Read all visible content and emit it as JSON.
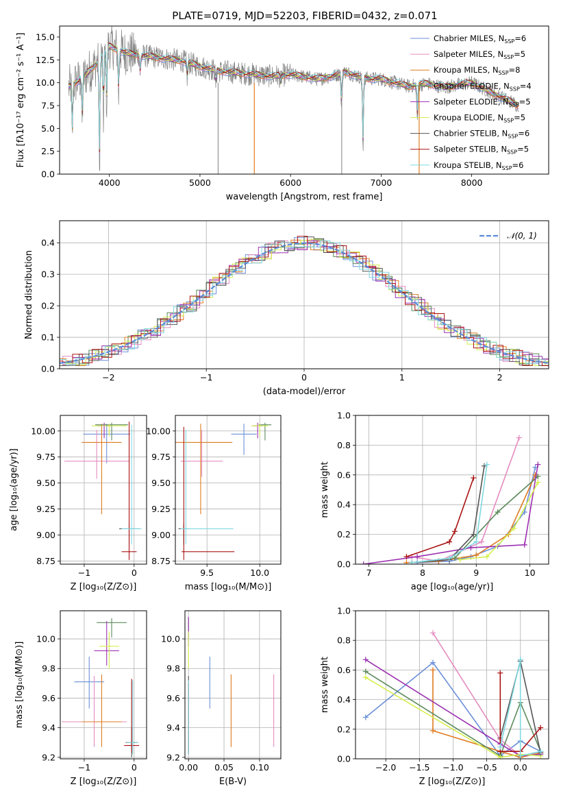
{
  "figure": {
    "title": "PLATE=0719, MJD=52203, FIBERID=0432, z=0.071"
  },
  "series_colors": {
    "Chabrier MILES": "#6a8fd8",
    "Salpeter MILES": "#e58bbf",
    "Kroupa MILES": "#e07b1f",
    "Chabrier ELODIE": "#5b8a5b",
    "Salpeter ELODIE": "#9b30b0",
    "Kroupa ELODIE": "#d4ee4c",
    "Chabrier STELIB": "#555555",
    "Salpeter STELIB": "#aa1111",
    "Kroupa STELIB": "#7fd8e0"
  },
  "chart_data": [
    {
      "id": "spectrum",
      "type": "line",
      "xlabel": "wavelength [Angstrom, rest frame]",
      "ylabel": "Flux [fλ10⁻¹⁷ erg cm⁻² s⁻¹ A⁻¹]",
      "xlim": [
        3450,
        8850
      ],
      "ylim": [
        0,
        16.2
      ],
      "xticks": [
        4000,
        5000,
        6000,
        7000,
        8000
      ],
      "yticks": [
        0.0,
        2.5,
        5.0,
        7.5,
        10.0,
        12.5,
        15.0
      ],
      "legend_position": "top-right",
      "legend": [
        {
          "label": "Chabrier MILES, N",
          "sub": "SSP",
          "tail": "=6",
          "series": "Chabrier MILES"
        },
        {
          "label": "Salpeter MILES, N",
          "sub": "SSP",
          "tail": "=5",
          "series": "Salpeter MILES"
        },
        {
          "label": "Kroupa MILES, N",
          "sub": "SSP",
          "tail": "=8",
          "series": "Kroupa MILES"
        },
        {
          "label": "Chabrier ELODIE, N",
          "sub": "SSP",
          "tail": "=4",
          "series": "Chabrier ELODIE"
        },
        {
          "label": "Salpeter ELODIE, N",
          "sub": "SSP",
          "tail": "=5",
          "series": "Salpeter ELODIE"
        },
        {
          "label": "Kroupa ELODIE, N",
          "sub": "SSP",
          "tail": "=5",
          "series": "Kroupa ELODIE"
        },
        {
          "label": "Chabrier STELIB, N",
          "sub": "SSP",
          "tail": "=6",
          "series": "Chabrier STELIB"
        },
        {
          "label": "Salpeter STELIB, N",
          "sub": "SSP",
          "tail": "=5",
          "series": "Salpeter STELIB"
        },
        {
          "label": "Kroupa STELIB, N",
          "sub": "SSP",
          "tail": "=6",
          "series": "Kroupa STELIB"
        }
      ],
      "continuum": [
        [
          3550,
          9.5
        ],
        [
          3700,
          10.5
        ],
        [
          3850,
          12.0
        ],
        [
          4000,
          14.0
        ],
        [
          4200,
          13.2
        ],
        [
          4500,
          12.8
        ],
        [
          4800,
          12.4
        ],
        [
          5000,
          11.8
        ],
        [
          5200,
          11.3
        ],
        [
          5500,
          11.0
        ],
        [
          5800,
          10.7
        ],
        [
          6000,
          10.9
        ],
        [
          6300,
          10.4
        ],
        [
          6500,
          10.8
        ],
        [
          6600,
          11.2
        ],
        [
          6800,
          10.5
        ],
        [
          7000,
          10.4
        ],
        [
          7300,
          9.6
        ],
        [
          7500,
          9.9
        ],
        [
          7700,
          9.5
        ],
        [
          8000,
          10.0
        ],
        [
          8200,
          9.0
        ],
        [
          8500,
          7.6
        ]
      ],
      "absorption": [
        [
          3590,
          4.0
        ],
        [
          3700,
          5.5
        ],
        [
          3890,
          0.0
        ],
        [
          3935,
          6.0
        ],
        [
          3970,
          7.5
        ],
        [
          4102,
          8.5
        ],
        [
          4340,
          11.0
        ],
        [
          4860,
          10.5
        ],
        [
          5175,
          9.8
        ],
        [
          5890,
          10.0
        ],
        [
          6563,
          7.0
        ],
        [
          6800,
          2.2
        ],
        [
          7400,
          5.8
        ],
        [
          8500,
          7.5
        ],
        [
          8540,
          6.5
        ]
      ],
      "gray_spikes": [
        5200,
        6565
      ],
      "orange_spikes": [
        5600,
        7420
      ]
    },
    {
      "id": "residuals",
      "type": "line",
      "xlabel": "(data-model)/error",
      "ylabel": "Normed distribution",
      "xlim": [
        -2.5,
        2.5
      ],
      "ylim": [
        0,
        0.47
      ],
      "xticks": [
        -2,
        -1,
        0,
        1,
        2
      ],
      "yticks": [
        0.0,
        0.1,
        0.2,
        0.3,
        0.4
      ],
      "legend_position": "top-right",
      "legend_label": "𝒩(0, 1)",
      "gaussian": {
        "mu": 0,
        "sigma": 1,
        "color": "#5b8ad6"
      }
    },
    {
      "id": "age-vs-z",
      "type": "scatter",
      "xlabel": "Z [log₁₀(Z/Z⊙)]",
      "ylabel": "age  [log₁₀(age/yr)]",
      "xlim": [
        -1.48,
        0.25
      ],
      "ylim": [
        8.72,
        10.15
      ],
      "xticks": [
        -1,
        0
      ],
      "yticks": [
        8.75,
        9.0,
        9.25,
        9.5,
        9.75,
        10.0
      ],
      "points": [
        {
          "series": "Chabrier MILES",
          "x": -0.55,
          "y": 9.97,
          "xerr": 0.47,
          "yerr": [
            0.28,
            0.1
          ]
        },
        {
          "series": "Salpeter MILES",
          "x": -0.75,
          "y": 9.71,
          "xerr": 0.65,
          "yerr": [
            0.17,
            0.3
          ]
        },
        {
          "series": "Kroupa MILES",
          "x": -0.65,
          "y": 9.89,
          "xerr": 0.4,
          "yerr": [
            0.69,
            0.18
          ]
        },
        {
          "series": "Chabrier ELODIE",
          "x": -0.45,
          "y": 10.06,
          "xerr": 0.33,
          "yerr": [
            0.15,
            0.02
          ]
        },
        {
          "series": "Salpeter ELODIE",
          "x": -0.6,
          "y": 10.05,
          "xerr": 0.15,
          "yerr": [
            0.12,
            0.03
          ]
        },
        {
          "series": "Kroupa ELODIE",
          "x": -0.5,
          "y": 10.05,
          "xerr": 0.35,
          "yerr": [
            0.1,
            0.02
          ]
        },
        {
          "series": "Chabrier STELIB",
          "x": -0.1,
          "y": 9.06,
          "xerr": 0.2,
          "yerr": [
            0.15,
            0.05
          ]
        },
        {
          "series": "Salpeter STELIB",
          "x": -0.1,
          "y": 8.84,
          "xerr": 0.15,
          "yerr": [
            0.08,
            1.25
          ]
        },
        {
          "series": "Kroupa STELIB",
          "x": -0.05,
          "y": 9.06,
          "xerr": 0.2,
          "yerr": [
            0.15,
            1.0
          ]
        }
      ]
    },
    {
      "id": "age-vs-mass",
      "type": "scatter",
      "xlabel": "mass [log₁₀(M/M⊙)]",
      "ylabel": "",
      "xlim": [
        9.2,
        10.2
      ],
      "ylim": [
        8.72,
        10.15
      ],
      "xticks": [
        9.5,
        10.0
      ],
      "yticks": [
        8.75,
        9.0,
        9.25,
        9.5,
        9.75,
        10.0
      ],
      "points": [
        {
          "series": "Chabrier MILES",
          "x": 9.85,
          "y": 9.97,
          "xerr": 0.12,
          "yerr": [
            0.2,
            0.1
          ]
        },
        {
          "series": "Salpeter MILES",
          "x": 9.45,
          "y": 9.71,
          "xerr": 0.2,
          "yerr": [
            0.15,
            0.3
          ]
        },
        {
          "series": "Kroupa MILES",
          "x": 9.44,
          "y": 9.89,
          "xerr": 0.3,
          "yerr": [
            0.69,
            0.18
          ]
        },
        {
          "series": "Chabrier ELODIE",
          "x": 10.05,
          "y": 10.06,
          "xerr": 0.06,
          "yerr": [
            0.15,
            0.02
          ]
        },
        {
          "series": "Salpeter ELODIE",
          "x": 9.98,
          "y": 10.05,
          "xerr": 0.05,
          "yerr": [
            0.12,
            0.03
          ]
        },
        {
          "series": "Kroupa ELODIE",
          "x": 10.0,
          "y": 10.05,
          "xerr": 0.08,
          "yerr": [
            0.1,
            0.02
          ]
        },
        {
          "series": "Chabrier STELIB",
          "x": 9.28,
          "y": 9.06,
          "xerr": 0.05,
          "yerr": [
            0.15,
            0.05
          ]
        },
        {
          "series": "Salpeter STELIB",
          "x": 9.28,
          "y": 8.84,
          "xerr": [
            0.02,
            0.48
          ],
          "yerr": [
            0.08,
            1.2
          ]
        },
        {
          "series": "Kroupa STELIB",
          "x": 9.3,
          "y": 9.06,
          "xerr": [
            0.05,
            0.45
          ],
          "yerr": [
            0.15,
            0.95
          ]
        }
      ]
    },
    {
      "id": "weight-vs-age",
      "type": "line",
      "xlabel": "age  [log₁₀(age/yr)]",
      "ylabel": "mass weight",
      "xlim": [
        6.75,
        10.35
      ],
      "ylim": [
        0,
        1.0
      ],
      "xticks": [
        7,
        8,
        9,
        10
      ],
      "yticks": [
        0.0,
        0.2,
        0.4,
        0.6,
        0.8,
        1.0
      ],
      "series": [
        {
          "name": "Chabrier MILES",
          "x": [
            7.9,
            8.5,
            8.9,
            9.4,
            9.9,
            10.1
          ],
          "y": [
            0.01,
            0.02,
            0.05,
            0.12,
            0.35,
            0.65
          ]
        },
        {
          "name": "Salpeter MILES",
          "x": [
            7.8,
            8.3,
            9.1,
            9.8
          ],
          "y": [
            0.05,
            0.02,
            0.15,
            0.85
          ]
        },
        {
          "name": "Kroupa MILES",
          "x": [
            7.7,
            8.3,
            9.0,
            9.6,
            10.1
          ],
          "y": [
            0.01,
            0.02,
            0.06,
            0.2,
            0.6
          ]
        },
        {
          "name": "Chabrier ELODIE",
          "x": [
            8.6,
            9.4,
            10.15
          ],
          "y": [
            0.04,
            0.35,
            0.59
          ]
        },
        {
          "name": "Salpeter ELODIE",
          "x": [
            6.9,
            7.9,
            8.9,
            9.9,
            10.15
          ],
          "y": [
            0.0,
            0.05,
            0.11,
            0.13,
            0.67
          ]
        },
        {
          "name": "Kroupa ELODIE",
          "x": [
            8.7,
            9.2,
            9.7,
            10.15
          ],
          "y": [
            0.03,
            0.05,
            0.24,
            0.55
          ]
        },
        {
          "name": "Chabrier STELIB",
          "x": [
            7.8,
            8.5,
            8.95,
            9.15
          ],
          "y": [
            0.01,
            0.03,
            0.2,
            0.66
          ]
        },
        {
          "name": "Salpeter STELIB",
          "x": [
            7.7,
            8.5,
            8.6,
            8.95
          ],
          "y": [
            0.05,
            0.15,
            0.22,
            0.58
          ]
        },
        {
          "name": "Kroupa STELIB",
          "x": [
            7.8,
            8.5,
            9.0,
            9.2
          ],
          "y": [
            0.01,
            0.04,
            0.15,
            0.67
          ]
        }
      ]
    },
    {
      "id": "mass-vs-z",
      "type": "scatter",
      "xlabel": "Z [log₁₀(Z/Z⊙)]",
      "ylabel": "mass [log₁₀(M/M⊙)]",
      "xlim": [
        -1.48,
        0.25
      ],
      "ylim": [
        9.19,
        10.19
      ],
      "xticks": [
        -1,
        0
      ],
      "yticks": [
        9.2,
        9.4,
        9.6,
        9.8,
        10.0
      ],
      "points": [
        {
          "series": "Chabrier MILES",
          "x": -0.9,
          "y": 9.71,
          "xerr": 0.3,
          "yerr": [
            0.18,
            0.17
          ]
        },
        {
          "series": "Salpeter MILES",
          "x": -0.8,
          "y": 9.44,
          "xerr": 0.65,
          "yerr": [
            0.17,
            0.31
          ]
        },
        {
          "series": "Kroupa MILES",
          "x": -0.65,
          "y": 9.44,
          "xerr": 0.4,
          "yerr": [
            0.17,
            0.32
          ]
        },
        {
          "series": "Chabrier ELODIE",
          "x": -0.45,
          "y": 10.11,
          "xerr": 0.3,
          "yerr": [
            0.1,
            0.03
          ]
        },
        {
          "series": "Salpeter ELODIE",
          "x": -0.55,
          "y": 9.92,
          "xerr": 0.25,
          "yerr": [
            0.1,
            0.2
          ]
        },
        {
          "series": "Kroupa ELODIE",
          "x": -0.5,
          "y": 9.95,
          "xerr": 0.2,
          "yerr": [
            0.15,
            0.1
          ]
        },
        {
          "series": "Chabrier STELIB",
          "x": -0.05,
          "y": 9.3,
          "xerr": 0.12,
          "yerr": [
            0.1,
            0.1
          ]
        },
        {
          "series": "Salpeter STELIB",
          "x": -0.05,
          "y": 9.28,
          "xerr": 0.15,
          "yerr": [
            0.05,
            0.45
          ]
        },
        {
          "series": "Kroupa STELIB",
          "x": -0.03,
          "y": 9.3,
          "xerr": 0.12,
          "yerr": [
            0.08,
            0.42
          ]
        }
      ]
    },
    {
      "id": "mass-vs-ebv",
      "type": "scatter",
      "xlabel": "E(B-V)",
      "ylabel": "",
      "xlim": [
        -0.005,
        0.13
      ],
      "ylim": [
        9.19,
        10.19
      ],
      "xticks": [
        0.0,
        0.05,
        0.1
      ],
      "yticks": [
        9.2,
        9.4,
        9.6,
        9.8,
        10.0
      ],
      "points": [
        {
          "series": "Chabrier MILES",
          "x": 0.03,
          "y": 9.71,
          "yerr": [
            0.18,
            0.17
          ]
        },
        {
          "series": "Salpeter MILES",
          "x": 0.12,
          "y": 9.44,
          "yerr": [
            0.17,
            0.32
          ]
        },
        {
          "series": "Kroupa MILES",
          "x": 0.06,
          "y": 9.44,
          "yerr": [
            0.17,
            0.32
          ]
        },
        {
          "series": "Chabrier ELODIE",
          "x": 0.0,
          "y": 10.11,
          "yerr": [
            0.1,
            0.03
          ]
        },
        {
          "series": "Salpeter ELODIE",
          "x": 0.0,
          "y": 10.05,
          "yerr": [
            0.1,
            0.1
          ]
        },
        {
          "series": "Kroupa ELODIE",
          "x": 0.0,
          "y": 9.95,
          "yerr": [
            0.15,
            0.1
          ]
        },
        {
          "series": "Chabrier STELIB",
          "x": 0.0,
          "y": 9.3,
          "yerr": [
            0.08,
            0.45
          ]
        },
        {
          "series": "Salpeter STELIB",
          "x": 0.0,
          "y": 9.28,
          "yerr": [
            0.05,
            0.42
          ]
        },
        {
          "series": "Kroupa STELIB",
          "x": 0.0,
          "y": 9.3,
          "yerr": [
            0.08,
            0.42
          ]
        }
      ]
    },
    {
      "id": "weight-vs-z",
      "type": "line",
      "xlabel": "Z [log₁₀(Z/Z⊙)]",
      "ylabel": "mass weight",
      "xlim": [
        -2.45,
        0.42
      ],
      "ylim": [
        0,
        1.0
      ],
      "xticks": [
        -2.0,
        -1.5,
        -1.0,
        -0.5,
        0.0
      ],
      "yticks": [
        0.0,
        0.2,
        0.4,
        0.6,
        0.8,
        1.0
      ],
      "series": [
        {
          "name": "Chabrier MILES",
          "x": [
            -2.3,
            -1.3,
            -0.3,
            0.0,
            0.3
          ],
          "y": [
            0.28,
            0.65,
            0.02,
            0.12,
            0.05
          ]
        },
        {
          "name": "Salpeter MILES",
          "x": [
            -1.3,
            -0.3,
            0.0,
            0.3
          ],
          "y": [
            0.85,
            0.13,
            0.02,
            0.04
          ]
        },
        {
          "name": "Kroupa MILES",
          "x": [
            -1.3,
            -1.3,
            -0.3,
            0.0,
            0.3
          ],
          "y": [
            0.6,
            0.19,
            0.05,
            0.01,
            0.04
          ]
        },
        {
          "name": "Chabrier ELODIE",
          "x": [
            -2.3,
            -0.3,
            0.0,
            0.3
          ],
          "y": [
            0.59,
            0.02,
            0.38,
            0.05
          ]
        },
        {
          "name": "Salpeter ELODIE",
          "x": [
            -2.3,
            -0.3,
            0.0,
            0.3
          ],
          "y": [
            0.67,
            0.1,
            0.02,
            0.03
          ]
        },
        {
          "name": "Kroupa ELODIE",
          "x": [
            -2.3,
            -0.3,
            0.0,
            0.3
          ],
          "y": [
            0.55,
            0.01,
            0.03,
            0.02
          ]
        },
        {
          "name": "Chabrier STELIB",
          "x": [
            -0.3,
            0.0,
            0.3
          ],
          "y": [
            0.14,
            0.66,
            0.04
          ]
        },
        {
          "name": "Salpeter STELIB",
          "x": [
            -0.3,
            -0.3,
            0.0,
            0.3
          ],
          "y": [
            0.58,
            0.05,
            0.05,
            0.21
          ]
        },
        {
          "name": "Kroupa STELIB",
          "x": [
            -0.3,
            0.0,
            0.0,
            0.3
          ],
          "y": [
            0.08,
            0.67,
            0.02,
            0.05
          ]
        }
      ]
    }
  ]
}
